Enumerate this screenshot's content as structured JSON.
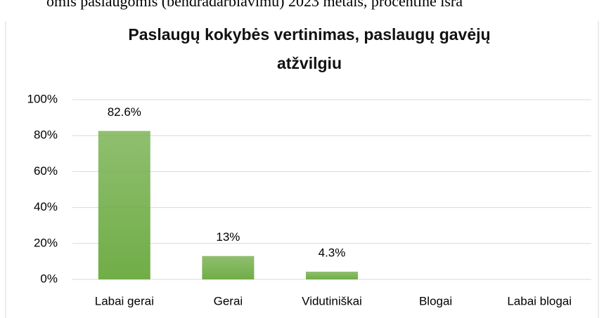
{
  "caption": "omis paslaugomis (bendradarbiavimu) 2023 metais, procentine išra",
  "chart_data": {
    "type": "bar",
    "title_lines": [
      "Paslaugų kokybės vertinimas, paslaugų gavėjų",
      "atžvilgiu"
    ],
    "categories": [
      "Labai gerai",
      "Gerai",
      "Vidutiniškai",
      "Blogai",
      "Labai blogai"
    ],
    "values": [
      82.6,
      13,
      4.3,
      0,
      0
    ],
    "value_labels": [
      "82.6%",
      "13%",
      "4.3%",
      null,
      null
    ],
    "color": "#70ad47",
    "ylim": [
      0,
      100
    ],
    "yticks": [
      {
        "value": 0,
        "label": "0%"
      },
      {
        "value": 20,
        "label": "20%"
      },
      {
        "value": 40,
        "label": "40%"
      },
      {
        "value": 60,
        "label": "60%"
      },
      {
        "value": 80,
        "label": "80%"
      },
      {
        "value": 100,
        "label": "100%"
      }
    ],
    "grid": true
  }
}
